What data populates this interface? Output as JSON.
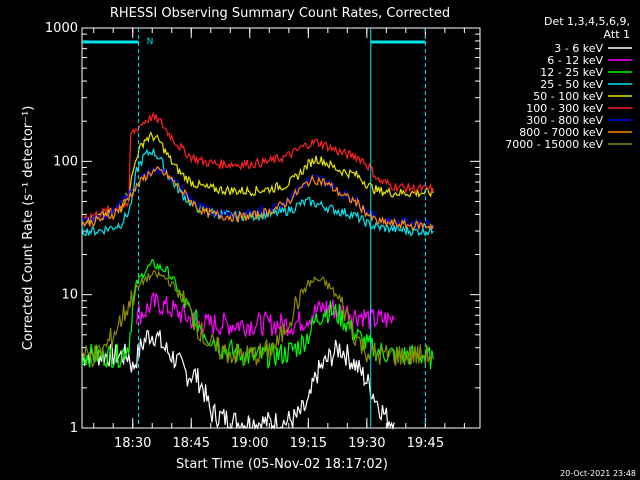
{
  "chart_data": {
    "type": "line",
    "title": "RHESSI Observing Summary Count Rates, Corrected",
    "xlabel": "Start Time (05-Nov-02 18:17:02)",
    "ylabel": "Corrected Count Rate (s⁻¹ detector⁻¹)",
    "y_scale": "log",
    "ylim": [
      1,
      1000
    ],
    "xlim_minutes": [
      0,
      102
    ],
    "y_ticks": [
      {
        "value": 1,
        "label": "1"
      },
      {
        "value": 10,
        "label": "10"
      },
      {
        "value": 100,
        "label": "100"
      },
      {
        "value": 1000,
        "label": "1000"
      }
    ],
    "x_ticks": [
      {
        "minute": 13,
        "label": "18:30"
      },
      {
        "minute": 28,
        "label": "18:45"
      },
      {
        "minute": 43,
        "label": "19:00"
      },
      {
        "minute": 58,
        "label": "19:15"
      },
      {
        "minute": 73,
        "label": "19:30"
      },
      {
        "minute": 88,
        "label": "19:45"
      }
    ],
    "legend_header": [
      "Det 1,3,4,5,6,9,",
      "Att 1"
    ],
    "series": [
      {
        "name": "3 - 6 keV",
        "color": "#ffffff",
        "points": [
          [
            0,
            3.5
          ],
          [
            10,
            3.5
          ],
          [
            12,
            3.5
          ],
          [
            13,
            2.8
          ],
          [
            15,
            4
          ],
          [
            17,
            5
          ],
          [
            19,
            5
          ],
          [
            21,
            4
          ],
          [
            23,
            3.5
          ],
          [
            25,
            3
          ],
          [
            27,
            2.5
          ],
          [
            29,
            2.5
          ],
          [
            31,
            2
          ],
          [
            33,
            1.3
          ],
          [
            36,
            1.2
          ],
          [
            40,
            1.1
          ],
          [
            44,
            1.1
          ],
          [
            48,
            1.1
          ],
          [
            52,
            1.1
          ],
          [
            55,
            1.2
          ],
          [
            58,
            1.5
          ],
          [
            60,
            2.5
          ],
          [
            62,
            3
          ],
          [
            64,
            3.5
          ],
          [
            66,
            4
          ],
          [
            68,
            3.5
          ],
          [
            70,
            3
          ],
          [
            72,
            2.5
          ],
          [
            74,
            2
          ],
          [
            76,
            1.5
          ],
          [
            78,
            1.2
          ],
          [
            80,
            1.1
          ]
        ]
      },
      {
        "name": "6 - 12 keV",
        "color": "#ff00ff",
        "points": [
          [
            14,
            7
          ],
          [
            16,
            7.5
          ],
          [
            18,
            8.5
          ],
          [
            20,
            8.5
          ],
          [
            22,
            8
          ],
          [
            24,
            7.5
          ],
          [
            26,
            7
          ],
          [
            28,
            6.5
          ],
          [
            30,
            6
          ],
          [
            34,
            6
          ],
          [
            40,
            6
          ],
          [
            46,
            6
          ],
          [
            50,
            6
          ],
          [
            54,
            6
          ],
          [
            57,
            6.5
          ],
          [
            60,
            7.5
          ],
          [
            62,
            8
          ],
          [
            64,
            8
          ],
          [
            66,
            7.5
          ],
          [
            68,
            7.5
          ],
          [
            70,
            7
          ],
          [
            72,
            7
          ],
          [
            74,
            6.5
          ],
          [
            76,
            6.5
          ],
          [
            78,
            6.5
          ],
          [
            80,
            6.5
          ]
        ]
      },
      {
        "name": "12 - 25 keV",
        "color": "#00ff00",
        "points": [
          [
            0,
            3.5
          ],
          [
            8,
            3.5
          ],
          [
            10,
            3.5
          ],
          [
            12,
            4.2
          ],
          [
            13,
            8
          ],
          [
            14,
            12
          ],
          [
            16,
            15
          ],
          [
            18,
            17
          ],
          [
            20,
            16
          ],
          [
            22,
            15
          ],
          [
            24,
            12
          ],
          [
            26,
            9
          ],
          [
            28,
            7
          ],
          [
            30,
            6
          ],
          [
            32,
            5
          ],
          [
            34,
            4.5
          ],
          [
            36,
            4
          ],
          [
            40,
            3.6
          ],
          [
            44,
            3.4
          ],
          [
            48,
            3.5
          ],
          [
            52,
            3.6
          ],
          [
            56,
            4.2
          ],
          [
            58,
            5
          ],
          [
            60,
            6.5
          ],
          [
            62,
            7.5
          ],
          [
            64,
            7.5
          ],
          [
            66,
            7
          ],
          [
            68,
            6
          ],
          [
            70,
            5
          ],
          [
            72,
            4.5
          ],
          [
            74,
            4
          ],
          [
            76,
            3.8
          ],
          [
            80,
            3.5
          ],
          [
            84,
            3.5
          ],
          [
            88,
            3.5
          ],
          [
            90,
            3.3
          ]
        ]
      },
      {
        "name": "25 - 50 keV",
        "color": "#00e5ee",
        "points": [
          [
            0,
            30
          ],
          [
            4,
            30
          ],
          [
            8,
            32
          ],
          [
            10,
            34
          ],
          [
            12,
            42
          ],
          [
            13,
            55
          ],
          [
            14,
            85
          ],
          [
            16,
            110
          ],
          [
            18,
            120
          ],
          [
            20,
            105
          ],
          [
            22,
            80
          ],
          [
            24,
            65
          ],
          [
            26,
            55
          ],
          [
            28,
            48
          ],
          [
            30,
            44
          ],
          [
            32,
            42
          ],
          [
            36,
            40
          ],
          [
            40,
            39
          ],
          [
            44,
            39
          ],
          [
            48,
            40
          ],
          [
            52,
            42
          ],
          [
            54,
            44
          ],
          [
            56,
            48
          ],
          [
            58,
            50
          ],
          [
            60,
            48
          ],
          [
            62,
            46
          ],
          [
            64,
            44
          ],
          [
            66,
            42
          ],
          [
            68,
            41
          ],
          [
            70,
            39
          ],
          [
            72,
            36
          ],
          [
            74,
            33
          ],
          [
            76,
            32
          ],
          [
            80,
            31
          ],
          [
            84,
            30
          ],
          [
            88,
            30
          ],
          [
            90,
            30
          ]
        ]
      },
      {
        "name": "50 - 100 keV",
        "color": "#e5e500",
        "points": [
          [
            0,
            36
          ],
          [
            4,
            38
          ],
          [
            8,
            42
          ],
          [
            10,
            45
          ],
          [
            12,
            60
          ],
          [
            13,
            80
          ],
          [
            14,
            110
          ],
          [
            16,
            145
          ],
          [
            18,
            155
          ],
          [
            20,
            140
          ],
          [
            22,
            110
          ],
          [
            24,
            90
          ],
          [
            26,
            78
          ],
          [
            28,
            70
          ],
          [
            30,
            66
          ],
          [
            32,
            63
          ],
          [
            36,
            61
          ],
          [
            40,
            60
          ],
          [
            44,
            60
          ],
          [
            48,
            62
          ],
          [
            52,
            66
          ],
          [
            54,
            72
          ],
          [
            56,
            82
          ],
          [
            58,
            95
          ],
          [
            60,
            105
          ],
          [
            62,
            100
          ],
          [
            64,
            92
          ],
          [
            66,
            86
          ],
          [
            68,
            82
          ],
          [
            70,
            80
          ],
          [
            72,
            72
          ],
          [
            74,
            64
          ],
          [
            76,
            60
          ],
          [
            80,
            58
          ],
          [
            84,
            58
          ],
          [
            88,
            58
          ],
          [
            90,
            58
          ]
        ]
      },
      {
        "name": "100 - 300 keV",
        "color": "#ff2020",
        "points": [
          [
            0,
            38
          ],
          [
            4,
            40
          ],
          [
            8,
            44
          ],
          [
            10,
            46
          ],
          [
            12,
            48
          ],
          [
            12.5,
            160
          ],
          [
            14,
            175
          ],
          [
            16,
            200
          ],
          [
            18,
            215
          ],
          [
            20,
            200
          ],
          [
            22,
            165
          ],
          [
            24,
            140
          ],
          [
            26,
            120
          ],
          [
            28,
            108
          ],
          [
            30,
            102
          ],
          [
            32,
            98
          ],
          [
            36,
            95
          ],
          [
            40,
            95
          ],
          [
            44,
            96
          ],
          [
            48,
            100
          ],
          [
            52,
            108
          ],
          [
            54,
            115
          ],
          [
            56,
            125
          ],
          [
            58,
            135
          ],
          [
            60,
            140
          ],
          [
            62,
            134
          ],
          [
            64,
            125
          ],
          [
            66,
            118
          ],
          [
            68,
            112
          ],
          [
            70,
            110
          ],
          [
            72,
            102
          ],
          [
            74,
            88
          ],
          [
            76,
            72
          ],
          [
            80,
            65
          ],
          [
            84,
            63
          ],
          [
            88,
            62
          ],
          [
            90,
            62
          ]
        ]
      },
      {
        "name": "300 - 800 keV",
        "color": "#0000dd",
        "points": [
          [
            0,
            35
          ],
          [
            4,
            37
          ],
          [
            8,
            42
          ],
          [
            10,
            48
          ],
          [
            12,
            56
          ],
          [
            14,
            66
          ],
          [
            16,
            78
          ],
          [
            18,
            86
          ],
          [
            20,
            86
          ],
          [
            22,
            80
          ],
          [
            24,
            70
          ],
          [
            26,
            60
          ],
          [
            28,
            52
          ],
          [
            30,
            46
          ],
          [
            32,
            43
          ],
          [
            36,
            41
          ],
          [
            40,
            40
          ],
          [
            44,
            41
          ],
          [
            48,
            44
          ],
          [
            52,
            50
          ],
          [
            54,
            56
          ],
          [
            56,
            64
          ],
          [
            58,
            72
          ],
          [
            60,
            75
          ],
          [
            62,
            72
          ],
          [
            64,
            66
          ],
          [
            66,
            60
          ],
          [
            68,
            55
          ],
          [
            70,
            52
          ],
          [
            72,
            46
          ],
          [
            74,
            40
          ],
          [
            76,
            37
          ],
          [
            80,
            35
          ],
          [
            84,
            35
          ],
          [
            88,
            34
          ],
          [
            90,
            34
          ]
        ]
      },
      {
        "name": "800 - 7000 keV",
        "color": "#ff8c00",
        "points": [
          [
            0,
            34
          ],
          [
            4,
            36
          ],
          [
            8,
            40
          ],
          [
            10,
            46
          ],
          [
            12,
            54
          ],
          [
            14,
            64
          ],
          [
            16,
            76
          ],
          [
            18,
            84
          ],
          [
            20,
            84
          ],
          [
            22,
            78
          ],
          [
            24,
            68
          ],
          [
            26,
            58
          ],
          [
            28,
            50
          ],
          [
            30,
            44
          ],
          [
            32,
            41
          ],
          [
            36,
            39
          ],
          [
            40,
            38
          ],
          [
            44,
            39
          ],
          [
            48,
            42
          ],
          [
            52,
            48
          ],
          [
            54,
            54
          ],
          [
            56,
            62
          ],
          [
            58,
            70
          ],
          [
            60,
            73
          ],
          [
            62,
            70
          ],
          [
            64,
            64
          ],
          [
            66,
            58
          ],
          [
            68,
            53
          ],
          [
            70,
            50
          ],
          [
            72,
            44
          ],
          [
            74,
            38
          ],
          [
            76,
            35
          ],
          [
            80,
            34
          ],
          [
            84,
            33
          ],
          [
            88,
            33
          ],
          [
            90,
            33
          ]
        ]
      },
      {
        "name": "7000 - 15000 keV",
        "color": "#8b8b00",
        "points": [
          [
            0,
            3.5
          ],
          [
            4,
            3.5
          ],
          [
            6,
            4
          ],
          [
            8,
            5
          ],
          [
            10,
            6.5
          ],
          [
            12,
            8.5
          ],
          [
            14,
            11
          ],
          [
            16,
            13
          ],
          [
            18,
            14
          ],
          [
            20,
            14
          ],
          [
            22,
            13
          ],
          [
            24,
            11
          ],
          [
            26,
            9
          ],
          [
            28,
            7
          ],
          [
            30,
            5.5
          ],
          [
            32,
            4.5
          ],
          [
            34,
            4
          ],
          [
            38,
            3.6
          ],
          [
            42,
            3.5
          ],
          [
            46,
            3.6
          ],
          [
            50,
            4.2
          ],
          [
            52,
            5.5
          ],
          [
            54,
            7.5
          ],
          [
            56,
            10
          ],
          [
            58,
            12
          ],
          [
            60,
            13
          ],
          [
            62,
            12.5
          ],
          [
            64,
            11
          ],
          [
            66,
            9
          ],
          [
            68,
            7
          ],
          [
            70,
            5
          ],
          [
            72,
            4
          ],
          [
            74,
            3.6
          ],
          [
            78,
            3.5
          ],
          [
            84,
            3.5
          ],
          [
            88,
            3.5
          ],
          [
            90,
            3.5
          ]
        ]
      }
    ],
    "attenuator_bars": [
      [
        0,
        14.5
      ],
      [
        74,
        88
      ]
    ],
    "attenuator_lines_minutes": [
      14.5,
      74,
      88
    ],
    "night_marker": {
      "minute": 14.5,
      "label": "N"
    }
  },
  "footer": {
    "timestamp": "20-Oct-2021 23:48"
  }
}
